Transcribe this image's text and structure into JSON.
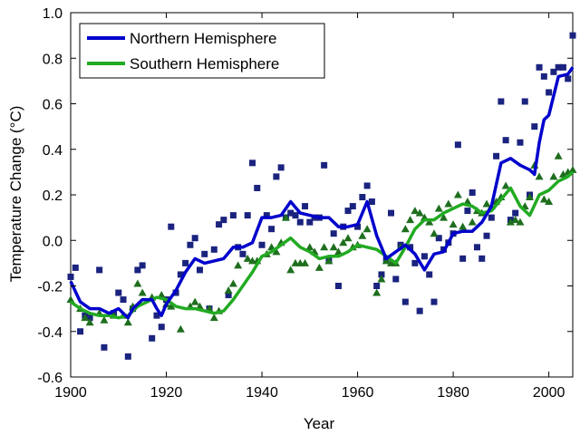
{
  "chart_data": {
    "type": "line",
    "xlabel": "Year",
    "ylabel": "Temperature Change (°C)",
    "xlim": [
      1900,
      2005
    ],
    "ylim": [
      -0.6,
      1.0
    ],
    "x_ticks": [
      1900,
      1920,
      1940,
      1960,
      1980,
      2000
    ],
    "y_ticks": [
      -0.6,
      -0.4,
      -0.2,
      0.0,
      0.2,
      0.4,
      0.6,
      0.8,
      1.0
    ],
    "y_tick_labels": [
      "-0.6",
      "-0.4",
      "-0.2",
      "0.0",
      "0.2",
      "0.4",
      "0.6",
      "0.8",
      "1.0"
    ],
    "grid": false,
    "legend_position": "top-left",
    "series": [
      {
        "name": "Northern Hemisphere",
        "color": "#0000cc",
        "line": [
          [
            1900,
            -0.18
          ],
          [
            1902,
            -0.27
          ],
          [
            1904,
            -0.3
          ],
          [
            1906,
            -0.3
          ],
          [
            1908,
            -0.32
          ],
          [
            1910,
            -0.3
          ],
          [
            1912,
            -0.34
          ],
          [
            1913,
            -0.3
          ],
          [
            1915,
            -0.26
          ],
          [
            1917,
            -0.26
          ],
          [
            1918,
            -0.3
          ],
          [
            1919,
            -0.33
          ],
          [
            1920,
            -0.28
          ],
          [
            1922,
            -0.22
          ],
          [
            1924,
            -0.14
          ],
          [
            1926,
            -0.08
          ],
          [
            1928,
            -0.1
          ],
          [
            1930,
            -0.09
          ],
          [
            1932,
            -0.08
          ],
          [
            1934,
            -0.03
          ],
          [
            1936,
            -0.03
          ],
          [
            1938,
            -0.01
          ],
          [
            1940,
            0.1
          ],
          [
            1942,
            0.1
          ],
          [
            1944,
            0.11
          ],
          [
            1946,
            0.17
          ],
          [
            1948,
            0.12
          ],
          [
            1950,
            0.11
          ],
          [
            1952,
            0.1
          ],
          [
            1954,
            0.1
          ],
          [
            1956,
            0.06
          ],
          [
            1958,
            0.06
          ],
          [
            1960,
            0.07
          ],
          [
            1962,
            0.17
          ],
          [
            1964,
            0.02
          ],
          [
            1966,
            -0.08
          ],
          [
            1968,
            -0.05
          ],
          [
            1970,
            -0.02
          ],
          [
            1972,
            -0.06
          ],
          [
            1974,
            -0.13
          ],
          [
            1976,
            -0.06
          ],
          [
            1978,
            -0.05
          ],
          [
            1980,
            0.03
          ],
          [
            1982,
            0.04
          ],
          [
            1984,
            0.04
          ],
          [
            1986,
            0.08
          ],
          [
            1988,
            0.15
          ],
          [
            1990,
            0.34
          ],
          [
            1992,
            0.36
          ],
          [
            1994,
            0.33
          ],
          [
            1996,
            0.31
          ],
          [
            1997,
            0.29
          ],
          [
            1998,
            0.43
          ],
          [
            1999,
            0.53
          ],
          [
            2000,
            0.55
          ],
          [
            2002,
            0.72
          ],
          [
            2004,
            0.73
          ],
          [
            2005,
            0.76
          ]
        ],
        "points": [
          [
            1900,
            -0.16
          ],
          [
            1901,
            -0.12
          ],
          [
            1902,
            -0.4
          ],
          [
            1903,
            -0.33
          ],
          [
            1904,
            -0.34
          ],
          [
            1906,
            -0.13
          ],
          [
            1907,
            -0.47
          ],
          [
            1909,
            -0.32
          ],
          [
            1910,
            -0.23
          ],
          [
            1911,
            -0.26
          ],
          [
            1912,
            -0.51
          ],
          [
            1913,
            -0.3
          ],
          [
            1914,
            -0.13
          ],
          [
            1915,
            -0.11
          ],
          [
            1917,
            -0.43
          ],
          [
            1918,
            -0.33
          ],
          [
            1919,
            -0.38
          ],
          [
            1920,
            -0.26
          ],
          [
            1921,
            0.06
          ],
          [
            1922,
            -0.23
          ],
          [
            1923,
            -0.15
          ],
          [
            1924,
            -0.1
          ],
          [
            1925,
            -0.02
          ],
          [
            1926,
            0.01
          ],
          [
            1927,
            -0.13
          ],
          [
            1928,
            -0.06
          ],
          [
            1929,
            -0.3
          ],
          [
            1930,
            -0.04
          ],
          [
            1931,
            0.07
          ],
          [
            1932,
            0.09
          ],
          [
            1933,
            -0.24
          ],
          [
            1934,
            0.11
          ],
          [
            1935,
            -0.03
          ],
          [
            1936,
            -0.06
          ],
          [
            1937,
            0.11
          ],
          [
            1938,
            0.34
          ],
          [
            1939,
            0.23
          ],
          [
            1940,
            -0.02
          ],
          [
            1941,
            0.11
          ],
          [
            1942,
            0.05
          ],
          [
            1943,
            0.28
          ],
          [
            1944,
            0.32
          ],
          [
            1945,
            0.1
          ],
          [
            1946,
            0.12
          ],
          [
            1947,
            0.11
          ],
          [
            1948,
            0.08
          ],
          [
            1949,
            0.15
          ],
          [
            1950,
            0.08
          ],
          [
            1951,
            0.1
          ],
          [
            1952,
            0.1
          ],
          [
            1953,
            0.33
          ],
          [
            1954,
            -0.09
          ],
          [
            1955,
            0.03
          ],
          [
            1956,
            -0.2
          ],
          [
            1957,
            0.06
          ],
          [
            1958,
            0.13
          ],
          [
            1959,
            0.15
          ],
          [
            1960,
            0.06
          ],
          [
            1961,
            0.19
          ],
          [
            1962,
            0.24
          ],
          [
            1963,
            0.17
          ],
          [
            1964,
            -0.2
          ],
          [
            1965,
            -0.15
          ],
          [
            1966,
            -0.08
          ],
          [
            1967,
            0.12
          ],
          [
            1968,
            -0.17
          ],
          [
            1969,
            -0.02
          ],
          [
            1970,
            -0.27
          ],
          [
            1971,
            -0.03
          ],
          [
            1972,
            -0.1
          ],
          [
            1973,
            -0.31
          ],
          [
            1974,
            -0.07
          ],
          [
            1975,
            -0.15
          ],
          [
            1976,
            -0.27
          ],
          [
            1977,
            0.01
          ],
          [
            1978,
            -0.04
          ],
          [
            1979,
            -0.01
          ],
          [
            1980,
            0.03
          ],
          [
            1981,
            0.42
          ],
          [
            1982,
            -0.08
          ],
          [
            1983,
            0.13
          ],
          [
            1984,
            0.21
          ],
          [
            1985,
            -0.03
          ],
          [
            1986,
            -0.08
          ],
          [
            1987,
            0.02
          ],
          [
            1988,
            0.1
          ],
          [
            1989,
            0.37
          ],
          [
            1990,
            0.61
          ],
          [
            1991,
            0.44
          ],
          [
            1992,
            0.09
          ],
          [
            1993,
            0.12
          ],
          [
            1994,
            0.43
          ],
          [
            1995,
            0.61
          ],
          [
            1996,
            0.2
          ],
          [
            1997,
            0.5
          ],
          [
            1998,
            0.76
          ],
          [
            1999,
            0.72
          ],
          [
            2000,
            0.65
          ],
          [
            2001,
            0.74
          ],
          [
            2002,
            0.76
          ],
          [
            2003,
            0.76
          ],
          [
            2004,
            0.71
          ],
          [
            2005,
            0.9
          ]
        ]
      },
      {
        "name": "Southern Hemisphere",
        "color": "#22aa22",
        "point_color": "#1e6e1e",
        "line": [
          [
            1900,
            -0.27
          ],
          [
            1902,
            -0.3
          ],
          [
            1904,
            -0.32
          ],
          [
            1906,
            -0.33
          ],
          [
            1908,
            -0.33
          ],
          [
            1910,
            -0.34
          ],
          [
            1912,
            -0.33
          ],
          [
            1914,
            -0.29
          ],
          [
            1916,
            -0.27
          ],
          [
            1918,
            -0.25
          ],
          [
            1920,
            -0.26
          ],
          [
            1922,
            -0.29
          ],
          [
            1924,
            -0.3
          ],
          [
            1926,
            -0.3
          ],
          [
            1928,
            -0.31
          ],
          [
            1930,
            -0.32
          ],
          [
            1932,
            -0.31
          ],
          [
            1934,
            -0.26
          ],
          [
            1936,
            -0.2
          ],
          [
            1938,
            -0.14
          ],
          [
            1940,
            -0.07
          ],
          [
            1942,
            -0.05
          ],
          [
            1944,
            -0.02
          ],
          [
            1946,
            0.01
          ],
          [
            1948,
            -0.03
          ],
          [
            1950,
            -0.05
          ],
          [
            1952,
            -0.08
          ],
          [
            1954,
            -0.07
          ],
          [
            1956,
            -0.07
          ],
          [
            1958,
            -0.05
          ],
          [
            1960,
            -0.02
          ],
          [
            1962,
            -0.03
          ],
          [
            1964,
            -0.04
          ],
          [
            1966,
            -0.07
          ],
          [
            1968,
            -0.1
          ],
          [
            1970,
            -0.03
          ],
          [
            1972,
            0.05
          ],
          [
            1974,
            0.09
          ],
          [
            1976,
            0.09
          ],
          [
            1978,
            0.12
          ],
          [
            1980,
            0.14
          ],
          [
            1982,
            0.16
          ],
          [
            1984,
            0.15
          ],
          [
            1986,
            0.12
          ],
          [
            1988,
            0.13
          ],
          [
            1990,
            0.18
          ],
          [
            1992,
            0.23
          ],
          [
            1994,
            0.15
          ],
          [
            1996,
            0.11
          ],
          [
            1998,
            0.2
          ],
          [
            2000,
            0.22
          ],
          [
            2002,
            0.26
          ],
          [
            2004,
            0.28
          ],
          [
            2005,
            0.3
          ]
        ],
        "points": [
          [
            1900,
            -0.26
          ],
          [
            1902,
            -0.3
          ],
          [
            1903,
            -0.34
          ],
          [
            1904,
            -0.36
          ],
          [
            1906,
            -0.32
          ],
          [
            1907,
            -0.35
          ],
          [
            1909,
            -0.33
          ],
          [
            1911,
            -0.33
          ],
          [
            1912,
            -0.36
          ],
          [
            1913,
            -0.29
          ],
          [
            1914,
            -0.19
          ],
          [
            1915,
            -0.23
          ],
          [
            1917,
            -0.25
          ],
          [
            1919,
            -0.24
          ],
          [
            1920,
            -0.28
          ],
          [
            1921,
            -0.29
          ],
          [
            1923,
            -0.39
          ],
          [
            1925,
            -0.29
          ],
          [
            1926,
            -0.27
          ],
          [
            1927,
            -0.29
          ],
          [
            1929,
            -0.3
          ],
          [
            1930,
            -0.34
          ],
          [
            1931,
            -0.31
          ],
          [
            1933,
            -0.22
          ],
          [
            1934,
            -0.19
          ],
          [
            1935,
            -0.11
          ],
          [
            1937,
            -0.08
          ],
          [
            1938,
            -0.09
          ],
          [
            1939,
            -0.09
          ],
          [
            1941,
            -0.06
          ],
          [
            1942,
            -0.03
          ],
          [
            1943,
            -0.05
          ],
          [
            1944,
            -0.01
          ],
          [
            1945,
            0.1
          ],
          [
            1946,
            -0.13
          ],
          [
            1947,
            -0.1
          ],
          [
            1948,
            -0.1
          ],
          [
            1949,
            -0.1
          ],
          [
            1950,
            -0.03
          ],
          [
            1951,
            -0.05
          ],
          [
            1952,
            -0.12
          ],
          [
            1953,
            -0.03
          ],
          [
            1954,
            -0.09
          ],
          [
            1955,
            -0.03
          ],
          [
            1956,
            -0.05
          ],
          [
            1957,
            -0.01
          ],
          [
            1958,
            0.01
          ],
          [
            1959,
            -0.03
          ],
          [
            1960,
            -0.02
          ],
          [
            1961,
            0.02
          ],
          [
            1962,
            0.05
          ],
          [
            1964,
            -0.23
          ],
          [
            1965,
            -0.17
          ],
          [
            1966,
            -0.09
          ],
          [
            1967,
            -0.1
          ],
          [
            1968,
            -0.1
          ],
          [
            1969,
            -0.03
          ],
          [
            1970,
            0.05
          ],
          [
            1971,
            0.09
          ],
          [
            1972,
            0.13
          ],
          [
            1973,
            0.12
          ],
          [
            1974,
            0.1
          ],
          [
            1975,
            0.08
          ],
          [
            1976,
            0.03
          ],
          [
            1977,
            0.14
          ],
          [
            1978,
            0.1
          ],
          [
            1979,
            0.16
          ],
          [
            1980,
            0.07
          ],
          [
            1981,
            0.2
          ],
          [
            1982,
            0.06
          ],
          [
            1983,
            0.17
          ],
          [
            1984,
            0.08
          ],
          [
            1985,
            0.13
          ],
          [
            1986,
            0.12
          ],
          [
            1987,
            0.16
          ],
          [
            1988,
            0.15
          ],
          [
            1989,
            0.17
          ],
          [
            1990,
            0.19
          ],
          [
            1991,
            0.24
          ],
          [
            1992,
            0.08
          ],
          [
            1993,
            0.09
          ],
          [
            1994,
            0.08
          ],
          [
            1995,
            0.15
          ],
          [
            1996,
            0.19
          ],
          [
            1997,
            0.33
          ],
          [
            1998,
            0.28
          ],
          [
            1999,
            0.18
          ],
          [
            2000,
            0.17
          ],
          [
            2001,
            0.28
          ],
          [
            2002,
            0.37
          ],
          [
            2003,
            0.29
          ],
          [
            2004,
            0.3
          ],
          [
            2005,
            0.31
          ]
        ]
      }
    ]
  }
}
